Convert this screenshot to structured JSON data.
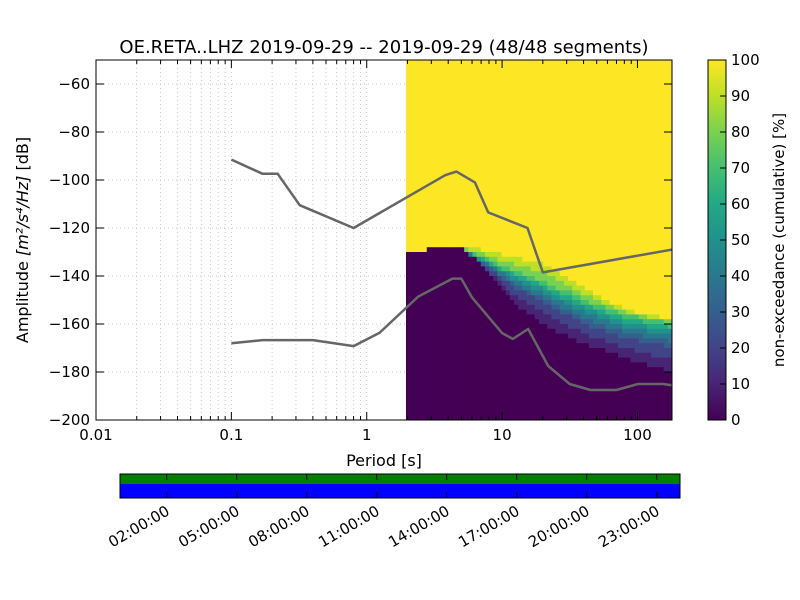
{
  "chart_data": {
    "type": "heatmap",
    "title": "OE.RETA..LHZ   2019-09-29 -- 2019-09-29  (48/48 segments)",
    "xlabel": "Period [s]",
    "ylabel_prefix": "Amplitude ",
    "ylabel_units": "[m²/s⁴/Hz]",
    "ylabel_suffix": " [dB]",
    "xscale": "log",
    "xlim": [
      0.01,
      180
    ],
    "ylim": [
      -200,
      -50
    ],
    "xticks": [
      {
        "value": 0.01,
        "label": "0.01"
      },
      {
        "value": 0.1,
        "label": "0.1"
      },
      {
        "value": 1,
        "label": "1"
      },
      {
        "value": 10,
        "label": "10"
      },
      {
        "value": 100,
        "label": "100"
      }
    ],
    "yticks": [
      {
        "value": -60,
        "label": "−60"
      },
      {
        "value": -80,
        "label": "−80"
      },
      {
        "value": -100,
        "label": "−100"
      },
      {
        "value": -120,
        "label": "−120"
      },
      {
        "value": -140,
        "label": "−140"
      },
      {
        "value": -160,
        "label": "−160"
      },
      {
        "value": -180,
        "label": "−180"
      },
      {
        "value": -200,
        "label": "−200"
      }
    ],
    "data_period_range": [
      1.95,
      180
    ],
    "colorbar": {
      "label": "non-exceedance (cumulative) [%]",
      "range": [
        0,
        100
      ],
      "ticks": [
        "0",
        "10",
        "20",
        "30",
        "40",
        "50",
        "60",
        "70",
        "80",
        "90",
        "100"
      ]
    },
    "percentile_bands": {
      "periods": [
        1.95,
        2.5,
        3.2,
        4.0,
        5.0,
        6.3,
        8.0,
        10,
        12.5,
        16,
        20,
        25,
        32,
        40,
        50,
        63,
        80,
        100,
        125,
        160,
        180
      ],
      "p0": [
        -131,
        -130,
        -128,
        -127,
        -128,
        -133,
        -140,
        -147,
        -153,
        -158,
        -162,
        -165,
        -168,
        -170,
        -172,
        -174,
        -176,
        -178,
        -180,
        -182,
        -183
      ],
      "p25": [
        -131,
        -130,
        -128,
        -127,
        -128,
        -133,
        -137,
        -141,
        -145,
        -148,
        -151,
        -154,
        -157,
        -160,
        -162,
        -164,
        -166,
        -167,
        -168,
        -169,
        -170
      ],
      "p50": [
        -131,
        -130,
        -128,
        -127,
        -128,
        -132,
        -135,
        -138,
        -141,
        -144,
        -146,
        -149,
        -151,
        -154,
        -156,
        -158,
        -160,
        -161,
        -162,
        -163,
        -164
      ],
      "p75": [
        -131,
        -130,
        -128,
        -127,
        -128,
        -131,
        -133,
        -136,
        -138,
        -140,
        -142,
        -145,
        -147,
        -150,
        -152,
        -154,
        -156,
        -157,
        -158,
        -159,
        -160
      ],
      "p100": [
        -131,
        -130,
        -128,
        -127,
        -127,
        -128,
        -129,
        -130,
        -131,
        -132,
        -133,
        -136,
        -140,
        -144,
        -147,
        -150,
        -153,
        -155,
        -156,
        -157,
        -158
      ]
    },
    "series": [
      {
        "name": "NHNM",
        "periods": [
          0.1,
          0.17,
          0.22,
          0.32,
          0.8,
          3.8,
          4.6,
          6.3,
          7.9,
          15.4,
          20,
          180
        ],
        "values": [
          -91.5,
          -97.4,
          -97.4,
          -110.5,
          -120.0,
          -98.0,
          -96.5,
          -101.0,
          -113.5,
          -120.0,
          -138.5,
          -129.0
        ]
      },
      {
        "name": "NLNM",
        "periods": [
          0.1,
          0.17,
          0.4,
          0.8,
          1.24,
          2.4,
          4.3,
          5.0,
          6.0,
          10,
          12,
          15.6,
          21.9,
          31.6,
          45,
          70,
          101,
          154,
          180
        ],
        "values": [
          -168.0,
          -166.7,
          -166.7,
          -169.2,
          -163.7,
          -148.6,
          -141.1,
          -141.1,
          -149.0,
          -163.8,
          -166.2,
          -162.1,
          -177.5,
          -185.0,
          -187.5,
          -187.5,
          -185.0,
          -185.0,
          -185.5
        ]
      }
    ],
    "timeline": {
      "tick_labels": [
        "02:00:00",
        "05:00:00",
        "08:00:00",
        "11:00:00",
        "14:00:00",
        "17:00:00",
        "20:00:00",
        "23:00:00"
      ],
      "tick_hours": [
        2,
        5,
        8,
        11,
        14,
        17,
        20,
        23
      ],
      "range_hours": [
        0,
        24
      ],
      "bar_colors": {
        "top": "#007f00",
        "bottom": "#0000ff"
      }
    }
  },
  "colors": {
    "noise_model_line": "#666666",
    "grid": "#bdbdbd",
    "axis": "#000000"
  }
}
